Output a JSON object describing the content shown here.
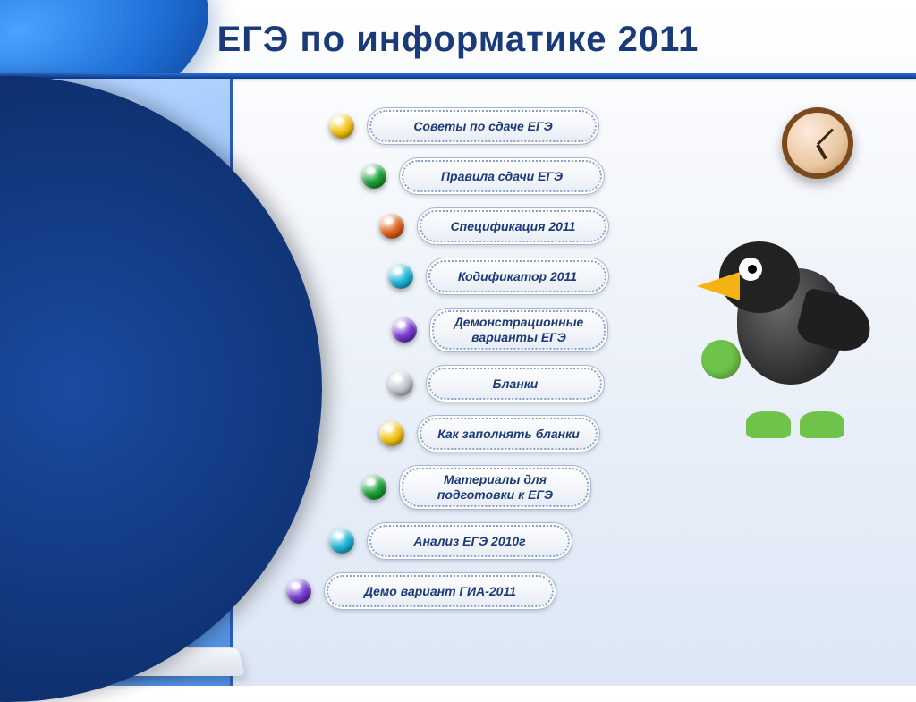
{
  "title": "ЕГЭ по информатике 2011",
  "title_color": "#1a3a7a",
  "title_fontsize": 40,
  "accent_bar_color": "#0b3a8a",
  "arc_color": "#0d2e6b",
  "sidebar_gradient": [
    "#b7d6ff",
    "#4e8ee0"
  ],
  "menu": {
    "pill_bg": "#ffffff",
    "pill_border": "#a8b6d4",
    "pill_text_color": "#1a3a7a",
    "pill_fontsize": 14,
    "items": [
      {
        "label": "Советы по сдаче ЕГЭ",
        "bullet_color": "#f5c518"
      },
      {
        "label": "Правила сдачи ЕГЭ",
        "bullet_color": "#1fa33c"
      },
      {
        "label": "Спецификация 2011",
        "bullet_color": "#e0651f"
      },
      {
        "label": "Кодификатор 2011",
        "bullet_color": "#22b7d8"
      },
      {
        "label": "Демонстрационные варианты ЕГЭ",
        "bullet_color": "#7a3fd1",
        "multiline": true
      },
      {
        "label": "Бланки",
        "bullet_color": "#c7c9d1"
      },
      {
        "label": "Как заполнять бланки",
        "bullet_color": "#f5c518"
      },
      {
        "label": "Материалы для подготовки к ЕГЭ",
        "bullet_color": "#1fa33c",
        "multiline": true
      },
      {
        "label": "Анализ ЕГЭ 2010г",
        "bullet_color": "#22b7d8"
      },
      {
        "label": "Демо вариант ГИА-2011",
        "bullet_color": "#7a3fd1"
      }
    ]
  },
  "clock": {
    "rim_color": "#7a4a1e",
    "face_color": "#e9c7a0"
  },
  "mascot": {
    "body_color": "#2b2b2b",
    "beak_color": "#f5b313",
    "accent_color": "#6fc24a"
  }
}
